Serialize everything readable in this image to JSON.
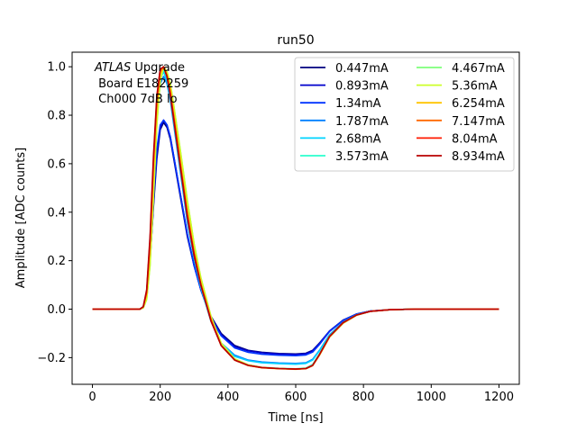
{
  "chart_data": {
    "type": "line",
    "title": "run50",
    "xlabel": "Time [ns]",
    "ylabel": "Amplitude [ADC counts]",
    "xlim": [
      -60,
      1260
    ],
    "ylim": [
      -0.31,
      1.06
    ],
    "xticks": [
      0,
      200,
      400,
      600,
      800,
      1000,
      1200
    ],
    "yticks": [
      -0.2,
      0.0,
      0.2,
      0.4,
      0.6,
      0.8,
      1.0
    ],
    "xtick_labels": [
      "0",
      "200",
      "400",
      "600",
      "800",
      "1000",
      "1200"
    ],
    "ytick_labels": [
      "−0.2",
      "0.0",
      "0.2",
      "0.4",
      "0.6",
      "0.8",
      "1.0"
    ],
    "grid": false,
    "legend_placement": "top-right",
    "legend_columns": 2,
    "annotation": {
      "line1_italic": "ATLAS",
      "line1_rest": " Upgrade",
      "line2": " Board E182259",
      "line3": " Ch000 7dB lo"
    },
    "time_points": [
      0,
      140,
      150,
      160,
      170,
      180,
      190,
      200,
      210,
      220,
      230,
      240,
      260,
      280,
      300,
      320,
      350,
      380,
      420,
      460,
      500,
      550,
      600,
      630,
      650,
      670,
      700,
      740,
      780,
      820,
      880,
      950,
      1050,
      1200
    ],
    "series": [
      {
        "name": "0.447mA",
        "color": "#00007f",
        "values": [
          0,
          0,
          0.01,
          0.06,
          0.2,
          0.42,
          0.62,
          0.74,
          0.77,
          0.75,
          0.7,
          0.62,
          0.46,
          0.3,
          0.18,
          0.08,
          -0.03,
          -0.1,
          -0.15,
          -0.17,
          -0.178,
          -0.183,
          -0.185,
          -0.182,
          -0.17,
          -0.14,
          -0.09,
          -0.045,
          -0.02,
          -0.008,
          -0.002,
          0,
          0,
          0
        ]
      },
      {
        "name": "0.893mA",
        "color": "#0000cc",
        "values": [
          0,
          0,
          0.01,
          0.06,
          0.2,
          0.43,
          0.64,
          0.75,
          0.78,
          0.76,
          0.71,
          0.63,
          0.47,
          0.31,
          0.18,
          0.08,
          -0.035,
          -0.105,
          -0.155,
          -0.172,
          -0.18,
          -0.185,
          -0.187,
          -0.184,
          -0.172,
          -0.142,
          -0.09,
          -0.046,
          -0.02,
          -0.008,
          -0.002,
          0,
          0,
          0
        ]
      },
      {
        "name": "1.34mA",
        "color": "#0033ff",
        "values": [
          0,
          0,
          0.01,
          0.06,
          0.21,
          0.45,
          0.66,
          0.76,
          0.78,
          0.76,
          0.71,
          0.63,
          0.47,
          0.31,
          0.18,
          0.08,
          -0.04,
          -0.11,
          -0.16,
          -0.178,
          -0.186,
          -0.19,
          -0.192,
          -0.189,
          -0.177,
          -0.146,
          -0.092,
          -0.047,
          -0.02,
          -0.008,
          -0.002,
          0,
          0,
          0
        ]
      },
      {
        "name": "1.787mA",
        "color": "#0080ff",
        "values": [
          0,
          0,
          0.01,
          0.07,
          0.25,
          0.55,
          0.8,
          0.93,
          0.96,
          0.93,
          0.86,
          0.76,
          0.56,
          0.36,
          0.21,
          0.09,
          -0.05,
          -0.14,
          -0.19,
          -0.21,
          -0.218,
          -0.222,
          -0.224,
          -0.221,
          -0.207,
          -0.17,
          -0.105,
          -0.053,
          -0.023,
          -0.009,
          -0.002,
          0,
          0,
          0
        ]
      },
      {
        "name": "2.68mA",
        "color": "#00d4ff",
        "values": [
          0,
          0,
          0.01,
          0.07,
          0.26,
          0.57,
          0.82,
          0.95,
          0.98,
          0.94,
          0.87,
          0.77,
          0.57,
          0.37,
          0.21,
          0.09,
          -0.05,
          -0.14,
          -0.195,
          -0.213,
          -0.221,
          -0.225,
          -0.227,
          -0.224,
          -0.21,
          -0.172,
          -0.106,
          -0.054,
          -0.023,
          -0.009,
          -0.002,
          0,
          0,
          0
        ]
      },
      {
        "name": "3.573mA",
        "color": "#29ffcd",
        "values": [
          0,
          0,
          0.01,
          0.06,
          0.24,
          0.54,
          0.8,
          0.95,
          0.99,
          0.96,
          0.9,
          0.81,
          0.61,
          0.41,
          0.24,
          0.11,
          -0.04,
          -0.15,
          -0.21,
          -0.232,
          -0.24,
          -0.244,
          -0.246,
          -0.243,
          -0.228,
          -0.185,
          -0.112,
          -0.056,
          -0.024,
          -0.009,
          -0.002,
          0,
          0,
          0
        ]
      },
      {
        "name": "4.467mA",
        "color": "#7dff7a",
        "values": [
          0,
          0,
          0.005,
          0.04,
          0.18,
          0.46,
          0.76,
          0.94,
          1.0,
          0.98,
          0.93,
          0.84,
          0.65,
          0.45,
          0.27,
          0.13,
          -0.03,
          -0.14,
          -0.205,
          -0.23,
          -0.24,
          -0.245,
          -0.247,
          -0.245,
          -0.232,
          -0.19,
          -0.115,
          -0.058,
          -0.025,
          -0.009,
          -0.002,
          0,
          0,
          0
        ]
      },
      {
        "name": "5.36mA",
        "color": "#cdff29",
        "values": [
          0,
          0,
          0.005,
          0.04,
          0.18,
          0.46,
          0.76,
          0.94,
          1.0,
          0.98,
          0.93,
          0.84,
          0.65,
          0.45,
          0.27,
          0.13,
          -0.03,
          -0.14,
          -0.205,
          -0.23,
          -0.24,
          -0.245,
          -0.247,
          -0.245,
          -0.232,
          -0.19,
          -0.115,
          -0.058,
          -0.025,
          -0.009,
          -0.002,
          0,
          0,
          0
        ]
      },
      {
        "name": "6.254mA",
        "color": "#ffc400",
        "values": [
          0,
          0,
          0.01,
          0.06,
          0.25,
          0.56,
          0.83,
          0.97,
          1.0,
          0.97,
          0.91,
          0.81,
          0.61,
          0.41,
          0.24,
          0.11,
          -0.04,
          -0.15,
          -0.21,
          -0.233,
          -0.242,
          -0.246,
          -0.248,
          -0.246,
          -0.233,
          -0.19,
          -0.114,
          -0.057,
          -0.024,
          -0.009,
          -0.002,
          0,
          0,
          0
        ]
      },
      {
        "name": "7.147mA",
        "color": "#ff6800",
        "values": [
          0,
          0,
          0.01,
          0.07,
          0.28,
          0.6,
          0.86,
          0.98,
          1.0,
          0.96,
          0.89,
          0.79,
          0.59,
          0.39,
          0.23,
          0.1,
          -0.045,
          -0.15,
          -0.21,
          -0.232,
          -0.241,
          -0.245,
          -0.247,
          -0.245,
          -0.232,
          -0.188,
          -0.113,
          -0.056,
          -0.024,
          -0.009,
          -0.002,
          0,
          0,
          0
        ]
      },
      {
        "name": "8.04mA",
        "color": "#ff1a00",
        "values": [
          0,
          0,
          0.01,
          0.07,
          0.28,
          0.61,
          0.87,
          0.99,
          1.0,
          0.96,
          0.89,
          0.79,
          0.59,
          0.39,
          0.23,
          0.1,
          -0.045,
          -0.15,
          -0.21,
          -0.232,
          -0.241,
          -0.245,
          -0.247,
          -0.245,
          -0.232,
          -0.188,
          -0.113,
          -0.056,
          -0.024,
          -0.009,
          -0.002,
          0,
          0,
          0
        ]
      },
      {
        "name": "8.934mA",
        "color": "#b80000",
        "values": [
          0,
          0,
          0.01,
          0.08,
          0.3,
          0.63,
          0.88,
          0.99,
          1.0,
          0.96,
          0.88,
          0.78,
          0.58,
          0.38,
          0.22,
          0.1,
          -0.05,
          -0.15,
          -0.21,
          -0.232,
          -0.241,
          -0.245,
          -0.247,
          -0.245,
          -0.232,
          -0.187,
          -0.112,
          -0.055,
          -0.024,
          -0.009,
          -0.002,
          0,
          0,
          0
        ]
      }
    ]
  }
}
